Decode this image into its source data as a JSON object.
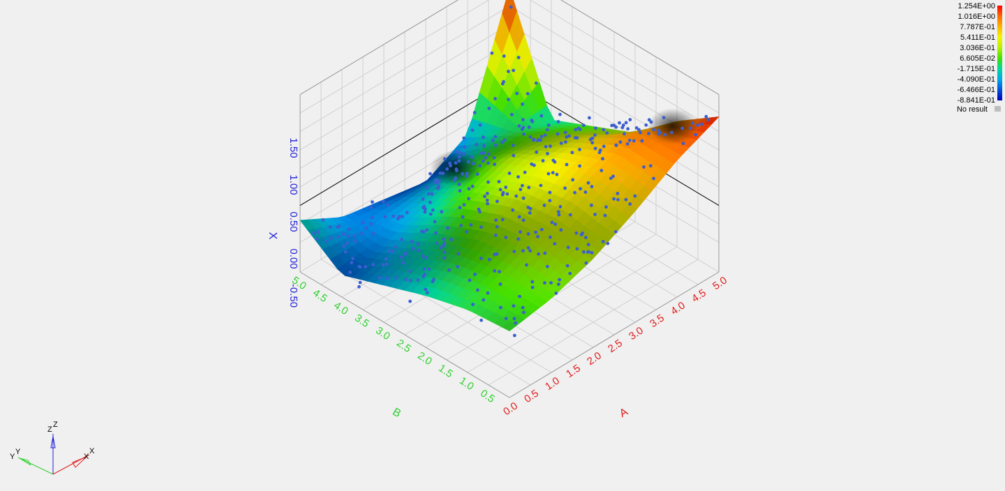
{
  "chart_data": {
    "type": "surface3d",
    "title": "",
    "axes": {
      "a": {
        "label": "A",
        "ticks": [
          "0.0",
          "0.5",
          "1.0",
          "1.5",
          "2.0",
          "2.5",
          "3.0",
          "3.5",
          "4.0",
          "4.5",
          "5.0"
        ],
        "range": [
          0,
          5
        ],
        "color": "#e01d1d"
      },
      "b": {
        "label": "B",
        "ticks": [
          "0.5",
          "1.0",
          "1.5",
          "2.0",
          "2.5",
          "3.0",
          "3.5",
          "4.0",
          "4.5",
          "5.0"
        ],
        "range": [
          0.5,
          5
        ],
        "color": "#2fcf2f"
      },
      "z": {
        "label": "X",
        "ticks": [
          "-0.50",
          "0.00",
          "0.50",
          "1.00",
          "1.50"
        ],
        "range": [
          -0.9,
          1.5
        ],
        "color": "#1f1fd6"
      }
    },
    "grid": true,
    "surface_height_grid": [
      [
        0.0,
        0.1,
        0.3,
        0.6,
        0.95,
        1.2
      ],
      [
        -0.05,
        0.15,
        0.4,
        0.7,
        0.95,
        0.8
      ],
      [
        -0.2,
        0.05,
        0.35,
        0.55,
        0.6,
        0.3
      ],
      [
        -0.4,
        -0.2,
        0.1,
        0.3,
        0.25,
        0.05
      ],
      [
        -0.6,
        -0.5,
        -0.3,
        -0.1,
        -0.05,
        -0.2
      ],
      [
        -0.2,
        -0.5,
        -0.6,
        -0.7,
        -0.4,
        1.25
      ]
    ],
    "points_count": 420
  },
  "legend": {
    "entries": [
      "1.254E+00",
      "1.016E+00",
      "7.787E-01",
      "5.411E-01",
      "3.036E-01",
      "6.605E-02",
      "-1.715E-01",
      "-4.090E-01",
      "-6.466E-01",
      "-8.841E-01"
    ],
    "no_result_label": "No result",
    "colors": [
      "#ff0000",
      "#ff6a00",
      "#ffb300",
      "#f5f500",
      "#b8f000",
      "#45e000",
      "#00d8a0",
      "#00a8e8",
      "#0050e0",
      "#0000b8"
    ],
    "no_result_color": "#bdbdbd"
  },
  "triad": {
    "x": "X",
    "y": "Y",
    "z": "Z",
    "z2": "Z"
  }
}
